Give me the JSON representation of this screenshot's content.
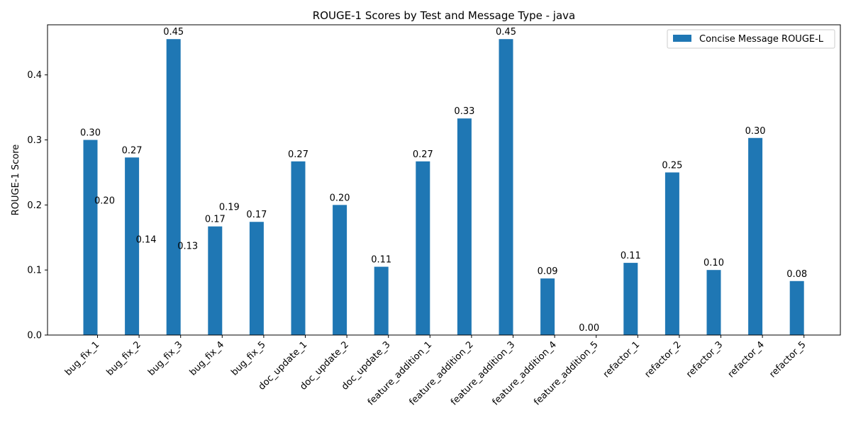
{
  "chart_data": {
    "type": "bar",
    "title": "ROUGE-1 Scores by Test and Message Type - java",
    "xlabel": "",
    "ylabel": "ROUGE-1 Score",
    "ylim": [
      0,
      0.477
    ],
    "yticks": [
      "0.0",
      "0.1",
      "0.2",
      "0.3",
      "0.4"
    ],
    "legend_position": "top-right",
    "grid": false,
    "categories": [
      "bug_fix_1",
      "bug_fix_2",
      "bug_fix_3",
      "bug_fix_4",
      "bug_fix_5",
      "doc_update_1",
      "doc_update_2",
      "doc_update_3",
      "feature_addition_1",
      "feature_addition_2",
      "feature_addition_3",
      "feature_addition_4",
      "feature_addition_5",
      "refactor_1",
      "refactor_2",
      "refactor_3",
      "refactor_4",
      "refactor_5"
    ],
    "series": [
      {
        "name": "Concise Message ROUGE-L",
        "color": "#1f77b4",
        "values": [
          0.3,
          0.273,
          0.455,
          0.167,
          0.174,
          0.267,
          0.2,
          0.105,
          0.267,
          0.333,
          0.455,
          0.087,
          0.0,
          0.111,
          0.25,
          0.1,
          0.303,
          0.083
        ],
        "labels": [
          "0.30",
          "0.27",
          "0.45",
          "0.17",
          "0.17",
          "0.27",
          "0.20",
          "0.11",
          "0.27",
          "0.33",
          "0.45",
          "0.09",
          "0.00",
          "0.11",
          "0.25",
          "0.10",
          "0.30",
          "0.08"
        ]
      }
    ],
    "annotations": [
      {
        "category": "bug_fix_1",
        "value": 0.2,
        "text": "0.20"
      },
      {
        "category": "bug_fix_2",
        "value": 0.14,
        "text": "0.14"
      },
      {
        "category": "bug_fix_3",
        "value": 0.13,
        "text": "0.13"
      },
      {
        "category": "bug_fix_4",
        "value": 0.19,
        "text": "0.19"
      }
    ]
  }
}
